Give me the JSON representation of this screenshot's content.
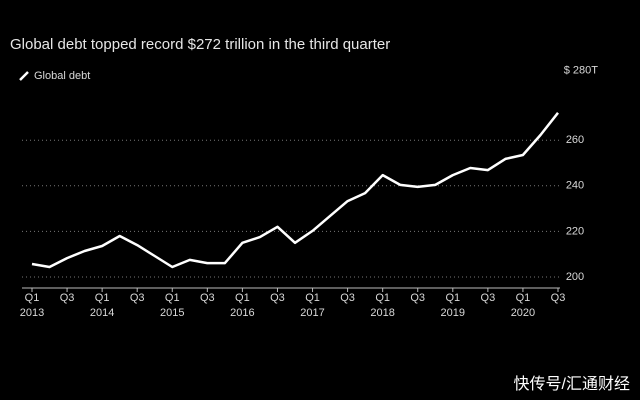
{
  "chart_data": {
    "type": "line",
    "title": "Global debt topped record $272 trillion in the third quarter",
    "categories": [
      "Q1",
      null,
      "Q3",
      null,
      "Q1",
      null,
      "Q3",
      null,
      "Q1",
      null,
      "Q3",
      null,
      "Q1",
      null,
      "Q3",
      null,
      "Q1",
      null,
      "Q3",
      null,
      "Q1",
      null,
      "Q3",
      null,
      "Q1",
      null,
      "Q3",
      null,
      "Q1",
      null,
      "Q3"
    ],
    "years": [
      "2013",
      "2014",
      "2015",
      "2016",
      "2017",
      "2018",
      "2019",
      "2020"
    ],
    "series": [
      {
        "name": "Global debt",
        "color": "#ffffff",
        "values": [
          205.7,
          204.4,
          208.3,
          211.4,
          213.6,
          218,
          214,
          209.2,
          204.4,
          207.5,
          206.1,
          206.1,
          215,
          217.5,
          222,
          215,
          220.2,
          226.8,
          233.3,
          236.8,
          244.7,
          240.4,
          239.5,
          240.4,
          244.7,
          247.8,
          246.9,
          251.8,
          253.5,
          262.3,
          272
        ]
      }
    ],
    "ylim": [
      195,
      285
    ],
    "yticks": [
      200,
      220,
      240,
      260,
      {
        "value": 280,
        "label": "$ 280T"
      }
    ],
    "grid": true,
    "legend": "top-left",
    "watermark": "快传号/汇通财经"
  }
}
